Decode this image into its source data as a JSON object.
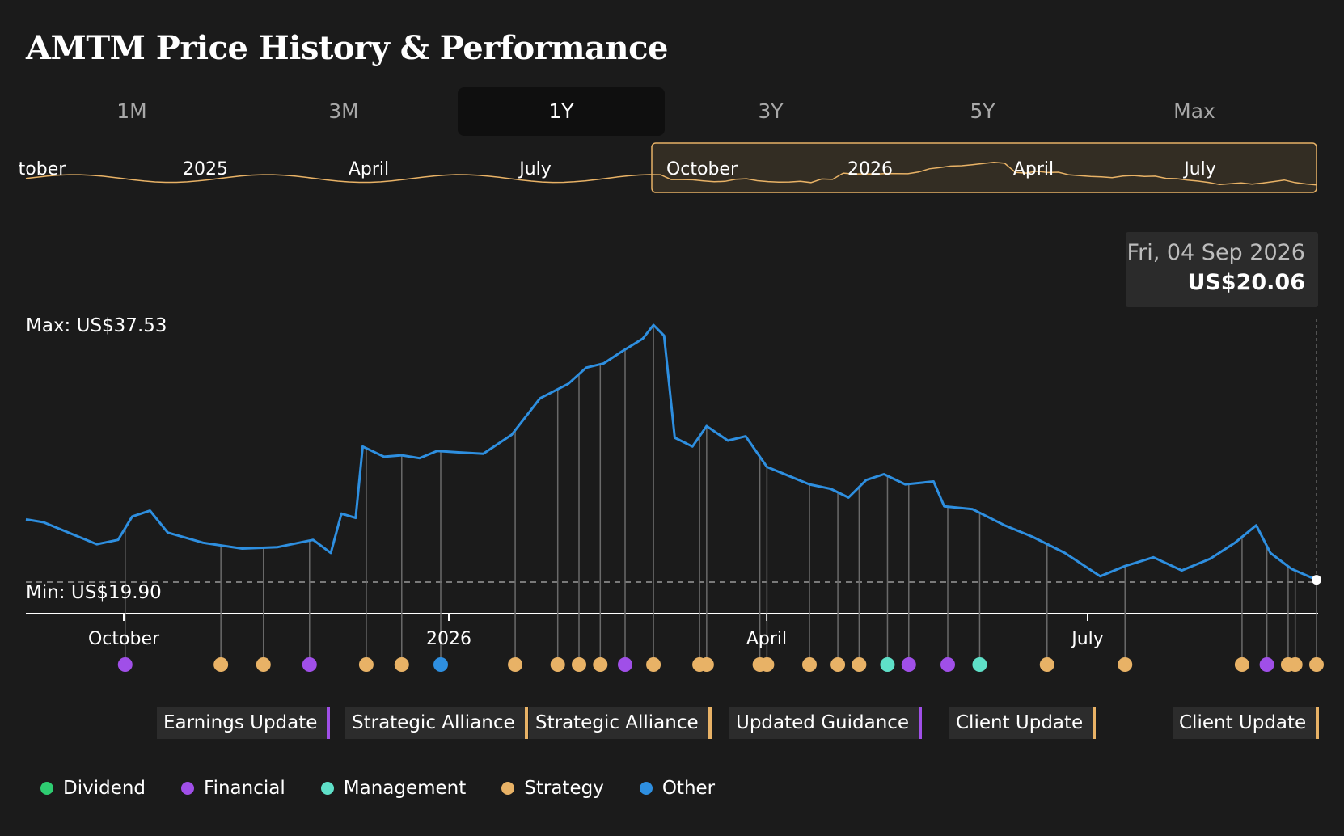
{
  "title": "AMTM Price History & Performance",
  "tabs": [
    {
      "label": "1M",
      "active": false
    },
    {
      "label": "3M",
      "active": false
    },
    {
      "label": "1Y",
      "active": true
    },
    {
      "label": "3Y",
      "active": false
    },
    {
      "label": "5Y",
      "active": false
    },
    {
      "label": "Max",
      "active": false
    }
  ],
  "navigator": {
    "labels": [
      "tober",
      "2025",
      "April",
      "July",
      "October",
      "2026",
      "April",
      "July"
    ],
    "line_color": "#e8b266"
  },
  "tooltip": {
    "date": "Fri, 04 Sep 2026",
    "price": "US$20.06"
  },
  "max_label": "Max: US$37.53",
  "min_label": "Min: US$19.90",
  "x_labels": [
    "October",
    "2026",
    "April",
    "July"
  ],
  "event_boxes": [
    {
      "label": "Earnings Update",
      "type": "financial"
    },
    {
      "label": "Strategic Alliance",
      "type": "strategy"
    },
    {
      "label": "Strategic Alliance",
      "type": "strategy"
    },
    {
      "label": "Updated Guidance",
      "type": "financial"
    },
    {
      "label": "Client Update",
      "type": "strategy"
    },
    {
      "label": "Client Update",
      "type": "strategy"
    }
  ],
  "legend": [
    {
      "label": "Dividend",
      "color": "#2ecc71"
    },
    {
      "label": "Financial",
      "color": "#a04fe8"
    },
    {
      "label": "Management",
      "color": "#5fe0c8"
    },
    {
      "label": "Strategy",
      "color": "#e8b266"
    },
    {
      "label": "Other",
      "color": "#2e8fe0"
    }
  ],
  "colors": {
    "line": "#2e8fe0",
    "background": "#1b1b1b"
  },
  "chart_data": {
    "type": "line",
    "title": "AMTM Price History & Performance",
    "range": "1Y",
    "x_start": "2025-09-05",
    "x_end": "2026-09-04",
    "ylim": [
      19.9,
      37.53
    ],
    "series": [
      {
        "name": "",
        "points": [
          [
            "2025-09-05",
            24.2
          ],
          [
            "2025-09-10",
            24.0
          ],
          [
            "2025-09-18",
            23.2
          ],
          [
            "2025-09-25",
            22.5
          ],
          [
            "2025-10-01",
            22.8
          ],
          [
            "2025-10-05",
            24.4
          ],
          [
            "2025-10-10",
            24.8
          ],
          [
            "2025-10-15",
            23.3
          ],
          [
            "2025-10-25",
            22.6
          ],
          [
            "2025-11-05",
            22.2
          ],
          [
            "2025-11-15",
            22.3
          ],
          [
            "2025-11-25",
            22.8
          ],
          [
            "2025-11-30",
            21.9
          ],
          [
            "2025-12-03",
            24.6
          ],
          [
            "2025-12-07",
            24.3
          ],
          [
            "2025-12-09",
            29.2
          ],
          [
            "2025-12-15",
            28.5
          ],
          [
            "2025-12-20",
            28.6
          ],
          [
            "2025-12-25",
            28.4
          ],
          [
            "2025-12-30",
            28.9
          ],
          [
            "2026-01-05",
            28.8
          ],
          [
            "2026-01-12",
            28.7
          ],
          [
            "2026-01-20",
            30.0
          ],
          [
            "2026-01-28",
            32.5
          ],
          [
            "2026-02-05",
            33.5
          ],
          [
            "2026-02-10",
            34.6
          ],
          [
            "2026-02-15",
            34.9
          ],
          [
            "2026-02-20",
            35.7
          ],
          [
            "2026-02-26",
            36.6
          ],
          [
            "2026-03-01",
            37.53
          ],
          [
            "2026-03-04",
            36.8
          ],
          [
            "2026-03-07",
            29.8
          ],
          [
            "2026-03-12",
            29.2
          ],
          [
            "2026-03-16",
            30.6
          ],
          [
            "2026-03-22",
            29.6
          ],
          [
            "2026-03-27",
            29.9
          ],
          [
            "2026-04-02",
            27.8
          ],
          [
            "2026-04-08",
            27.2
          ],
          [
            "2026-04-14",
            26.6
          ],
          [
            "2026-04-20",
            26.3
          ],
          [
            "2026-04-25",
            25.7
          ],
          [
            "2026-04-30",
            26.9
          ],
          [
            "2026-05-05",
            27.3
          ],
          [
            "2026-05-11",
            26.6
          ],
          [
            "2026-05-19",
            26.8
          ],
          [
            "2026-05-22",
            25.1
          ],
          [
            "2026-05-30",
            24.9
          ],
          [
            "2026-06-08",
            23.8
          ],
          [
            "2026-06-16",
            23.0
          ],
          [
            "2026-06-25",
            21.9
          ],
          [
            "2026-07-05",
            20.3
          ],
          [
            "2026-07-12",
            21.0
          ],
          [
            "2026-07-20",
            21.6
          ],
          [
            "2026-07-28",
            20.7
          ],
          [
            "2026-08-05",
            21.5
          ],
          [
            "2026-08-12",
            22.6
          ],
          [
            "2026-08-18",
            23.8
          ],
          [
            "2026-08-22",
            21.9
          ],
          [
            "2026-08-28",
            20.8
          ],
          [
            "2026-09-04",
            20.06
          ]
        ]
      }
    ],
    "events": [
      {
        "date": "2025-10-03",
        "type": "financial"
      },
      {
        "date": "2025-10-30",
        "type": "strategy"
      },
      {
        "date": "2025-11-11",
        "type": "strategy"
      },
      {
        "date": "2025-11-24",
        "type": "financial"
      },
      {
        "date": "2025-12-10",
        "type": "strategy"
      },
      {
        "date": "2025-12-20",
        "type": "strategy"
      },
      {
        "date": "2025-12-31",
        "type": "other"
      },
      {
        "date": "2026-01-21",
        "type": "strategy"
      },
      {
        "date": "2026-02-02",
        "type": "strategy"
      },
      {
        "date": "2026-02-08",
        "type": "strategy"
      },
      {
        "date": "2026-02-14",
        "type": "strategy"
      },
      {
        "date": "2026-02-21",
        "type": "financial"
      },
      {
        "date": "2026-03-01",
        "type": "strategy"
      },
      {
        "date": "2026-03-14",
        "type": "strategy"
      },
      {
        "date": "2026-03-16",
        "type": "strategy"
      },
      {
        "date": "2026-03-31",
        "type": "strategy"
      },
      {
        "date": "2026-04-02",
        "type": "strategy"
      },
      {
        "date": "2026-04-14",
        "type": "strategy"
      },
      {
        "date": "2026-04-22",
        "type": "strategy"
      },
      {
        "date": "2026-04-28",
        "type": "strategy"
      },
      {
        "date": "2026-05-06",
        "type": "management"
      },
      {
        "date": "2026-05-12",
        "type": "financial"
      },
      {
        "date": "2026-05-23",
        "type": "financial"
      },
      {
        "date": "2026-06-01",
        "type": "management"
      },
      {
        "date": "2026-06-20",
        "type": "strategy"
      },
      {
        "date": "2026-07-12",
        "type": "strategy"
      },
      {
        "date": "2026-08-14",
        "type": "strategy"
      },
      {
        "date": "2026-08-21",
        "type": "financial"
      },
      {
        "date": "2026-08-27",
        "type": "strategy"
      },
      {
        "date": "2026-08-29",
        "type": "strategy"
      },
      {
        "date": "2026-09-04",
        "type": "strategy"
      }
    ]
  }
}
